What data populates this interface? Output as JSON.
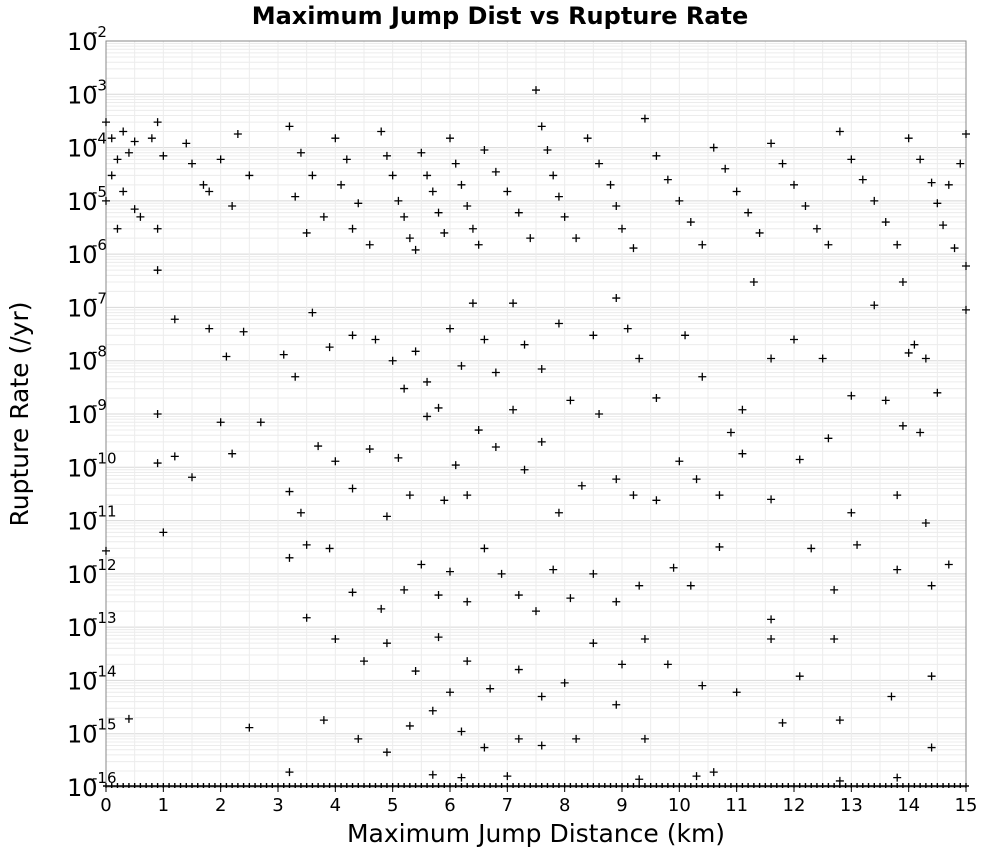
{
  "chart_data": {
    "type": "scatter",
    "title": "Maximum Jump Dist vs Rupture Rate",
    "xlabel": "Maximum Jump Distance (km)",
    "ylabel": "Rupture Rate (/yr)",
    "xlim": [
      0,
      15
    ],
    "ylim": [
      1e-16,
      0.01
    ],
    "y_scale": "log",
    "grid": true,
    "marker": "plus",
    "marker_color": "#000000",
    "x_ticks": [
      "0",
      "1",
      "2",
      "3",
      "4",
      "5",
      "6",
      "7",
      "8",
      "9",
      "10",
      "11",
      "12",
      "13",
      "14",
      "15"
    ],
    "y_ticks": [
      {
        "base": "10",
        "exp": "-16"
      },
      {
        "base": "10",
        "exp": "-15"
      },
      {
        "base": "10",
        "exp": "-14"
      },
      {
        "base": "10",
        "exp": "-13"
      },
      {
        "base": "10",
        "exp": "-12"
      },
      {
        "base": "10",
        "exp": "-11"
      },
      {
        "base": "10",
        "exp": "-10"
      },
      {
        "base": "10",
        "exp": "-9"
      },
      {
        "base": "10",
        "exp": "-8"
      },
      {
        "base": "10",
        "exp": "-7"
      },
      {
        "base": "10",
        "exp": "-6"
      },
      {
        "base": "10",
        "exp": "-5"
      },
      {
        "base": "10",
        "exp": "-4"
      },
      {
        "base": "10",
        "exp": "-3"
      },
      {
        "base": "10",
        "exp": "-2"
      }
    ],
    "points": [
      [
        0.0,
        0.0003
      ],
      [
        0.1,
        0.00015
      ],
      [
        0.3,
        0.0002
      ],
      [
        0.5,
        0.00013
      ],
      [
        0.2,
        6e-05
      ],
      [
        0.4,
        8e-05
      ],
      [
        0.1,
        3e-05
      ],
      [
        0.3,
        1.5e-05
      ],
      [
        0.5,
        7e-06
      ],
      [
        0.0,
        1e-05
      ],
      [
        0.2,
        3e-06
      ],
      [
        0.6,
        5e-06
      ],
      [
        0.9,
        0.0003
      ],
      [
        0.8,
        0.00015
      ],
      [
        1.0,
        7e-05
      ],
      [
        0.9,
        3e-06
      ],
      [
        1.4,
        0.00012
      ],
      [
        1.5,
        5e-05
      ],
      [
        1.8,
        1.5e-05
      ],
      [
        2.0,
        6e-05
      ],
      [
        2.3,
        0.00018
      ],
      [
        2.5,
        3e-05
      ],
      [
        2.2,
        8e-06
      ],
      [
        1.7,
        2e-05
      ],
      [
        3.2,
        0.00025
      ],
      [
        3.4,
        8e-05
      ],
      [
        3.6,
        3e-05
      ],
      [
        3.3,
        1.2e-05
      ],
      [
        3.8,
        5e-06
      ],
      [
        3.5,
        2.5e-06
      ],
      [
        4.0,
        0.00015
      ],
      [
        4.2,
        6e-05
      ],
      [
        4.1,
        2e-05
      ],
      [
        4.4,
        9e-06
      ],
      [
        4.3,
        3e-06
      ],
      [
        4.6,
        1.5e-06
      ],
      [
        4.8,
        0.0002
      ],
      [
        4.9,
        7e-05
      ],
      [
        5.0,
        3e-05
      ],
      [
        5.1,
        1e-05
      ],
      [
        5.2,
        5e-06
      ],
      [
        5.3,
        2e-06
      ],
      [
        5.4,
        1.2e-06
      ],
      [
        5.5,
        8e-05
      ],
      [
        5.6,
        3e-05
      ],
      [
        5.7,
        1.5e-05
      ],
      [
        5.8,
        6e-06
      ],
      [
        5.9,
        2.5e-06
      ],
      [
        6.0,
        0.00015
      ],
      [
        6.1,
        5e-05
      ],
      [
        6.2,
        2e-05
      ],
      [
        6.3,
        8e-06
      ],
      [
        6.4,
        3e-06
      ],
      [
        6.5,
        1.5e-06
      ],
      [
        6.6,
        9e-05
      ],
      [
        6.8,
        3.5e-05
      ],
      [
        7.0,
        1.5e-05
      ],
      [
        7.2,
        6e-06
      ],
      [
        7.4,
        2e-06
      ],
      [
        7.5,
        0.0012
      ],
      [
        7.6,
        0.00025
      ],
      [
        7.7,
        9e-05
      ],
      [
        7.8,
        3e-05
      ],
      [
        7.9,
        1.2e-05
      ],
      [
        8.0,
        5e-06
      ],
      [
        8.2,
        2e-06
      ],
      [
        8.4,
        0.00015
      ],
      [
        8.6,
        5e-05
      ],
      [
        8.8,
        2e-05
      ],
      [
        8.9,
        8e-06
      ],
      [
        9.0,
        3e-06
      ],
      [
        9.2,
        1.3e-06
      ],
      [
        9.4,
        0.00035
      ],
      [
        9.6,
        7e-05
      ],
      [
        9.8,
        2.5e-05
      ],
      [
        10.0,
        1e-05
      ],
      [
        10.2,
        4e-06
      ],
      [
        10.4,
        1.5e-06
      ],
      [
        10.6,
        0.0001
      ],
      [
        10.8,
        4e-05
      ],
      [
        11.0,
        1.5e-05
      ],
      [
        11.2,
        6e-06
      ],
      [
        11.4,
        2.5e-06
      ],
      [
        11.3,
        3e-07
      ],
      [
        11.6,
        0.00012
      ],
      [
        11.8,
        5e-05
      ],
      [
        12.0,
        2e-05
      ],
      [
        12.2,
        8e-06
      ],
      [
        12.4,
        3e-06
      ],
      [
        12.6,
        1.5e-06
      ],
      [
        12.8,
        0.0002
      ],
      [
        13.0,
        6e-05
      ],
      [
        13.2,
        2.5e-05
      ],
      [
        13.4,
        1e-05
      ],
      [
        13.6,
        4e-06
      ],
      [
        13.8,
        1.5e-06
      ],
      [
        14.0,
        0.00015
      ],
      [
        14.2,
        6e-05
      ],
      [
        14.4,
        2.2e-05
      ],
      [
        14.5,
        9e-06
      ],
      [
        14.6,
        3.5e-06
      ],
      [
        14.8,
        1.3e-06
      ],
      [
        15.0,
        0.00018
      ],
      [
        14.9,
        5e-05
      ],
      [
        15.0,
        6e-07
      ],
      [
        15.0,
        9e-08
      ],
      [
        14.7,
        2e-05
      ],
      [
        13.9,
        3e-07
      ],
      [
        0.9,
        5e-07
      ],
      [
        1.2,
        6e-08
      ],
      [
        1.8,
        4e-08
      ],
      [
        2.4,
        3.5e-08
      ],
      [
        2.1,
        1.2e-08
      ],
      [
        3.1,
        1.3e-08
      ],
      [
        3.3,
        5e-09
      ],
      [
        3.6,
        8e-08
      ],
      [
        3.9,
        1.8e-08
      ],
      [
        4.3,
        3e-08
      ],
      [
        4.7,
        2.5e-08
      ],
      [
        5.0,
        1e-08
      ],
      [
        5.2,
        3e-09
      ],
      [
        5.4,
        1.5e-08
      ],
      [
        5.6,
        4e-09
      ],
      [
        5.8,
        1.3e-09
      ],
      [
        6.0,
        4e-08
      ],
      [
        6.2,
        8e-09
      ],
      [
        6.4,
        1.2e-07
      ],
      [
        6.6,
        2.5e-08
      ],
      [
        6.8,
        6e-09
      ],
      [
        7.1,
        1.2e-07
      ],
      [
        7.3,
        2e-08
      ],
      [
        7.6,
        7e-09
      ],
      [
        7.9,
        5e-08
      ],
      [
        8.1,
        1.8e-09
      ],
      [
        8.5,
        3e-08
      ],
      [
        8.9,
        1.5e-07
      ],
      [
        9.1,
        4e-08
      ],
      [
        9.3,
        1.1e-08
      ],
      [
        9.6,
        2e-09
      ],
      [
        10.1,
        3e-08
      ],
      [
        10.4,
        5e-09
      ],
      [
        10.9,
        4.5e-10
      ],
      [
        11.1,
        1.2e-09
      ],
      [
        11.6,
        1.1e-08
      ],
      [
        12.0,
        2.5e-08
      ],
      [
        12.5,
        1.1e-08
      ],
      [
        13.0,
        2.2e-09
      ],
      [
        13.4,
        1.1e-07
      ],
      [
        13.6,
        1.8e-09
      ],
      [
        14.0,
        1.4e-08
      ],
      [
        14.3,
        1.1e-08
      ],
      [
        14.5,
        2.5e-09
      ],
      [
        0.9,
        1e-09
      ],
      [
        0.9,
        1.2e-10
      ],
      [
        1.2,
        1.6e-10
      ],
      [
        1.5,
        6.5e-11
      ],
      [
        2.0,
        7e-10
      ],
      [
        2.2,
        1.8e-10
      ],
      [
        2.7,
        7e-10
      ],
      [
        3.2,
        3.5e-11
      ],
      [
        3.4,
        1.4e-11
      ],
      [
        3.7,
        2.5e-10
      ],
      [
        4.0,
        1.3e-10
      ],
      [
        4.3,
        4e-11
      ],
      [
        4.6,
        2.2e-10
      ],
      [
        4.9,
        1.2e-11
      ],
      [
        5.1,
        1.5e-10
      ],
      [
        5.3,
        3e-11
      ],
      [
        5.6,
        9e-10
      ],
      [
        5.9,
        2.4e-11
      ],
      [
        6.1,
        1.1e-10
      ],
      [
        6.3,
        3e-11
      ],
      [
        6.5,
        5e-10
      ],
      [
        6.8,
        2.4e-10
      ],
      [
        7.1,
        1.2e-09
      ],
      [
        7.3,
        9e-11
      ],
      [
        7.6,
        3e-10
      ],
      [
        7.9,
        1.4e-11
      ],
      [
        8.3,
        4.5e-11
      ],
      [
        8.6,
        1e-09
      ],
      [
        8.9,
        6e-11
      ],
      [
        9.2,
        3e-11
      ],
      [
        9.6,
        2.4e-11
      ],
      [
        10.0,
        1.3e-10
      ],
      [
        10.3,
        6e-11
      ],
      [
        10.7,
        3e-11
      ],
      [
        11.1,
        1.8e-10
      ],
      [
        11.6,
        2.5e-11
      ],
      [
        12.1,
        1.4e-10
      ],
      [
        12.6,
        3.5e-10
      ],
      [
        13.0,
        1.4e-11
      ],
      [
        13.8,
        3e-11
      ],
      [
        13.9,
        6e-10
      ],
      [
        14.2,
        4.5e-10
      ],
      [
        1.0,
        6e-12
      ],
      [
        0.0,
        2.7e-12
      ],
      [
        3.2,
        2e-12
      ],
      [
        3.5,
        3.5e-12
      ],
      [
        3.9,
        3e-12
      ],
      [
        4.3,
        4.5e-13
      ],
      [
        4.8,
        2.2e-13
      ],
      [
        5.2,
        5e-13
      ],
      [
        5.5,
        1.5e-12
      ],
      [
        5.8,
        4e-13
      ],
      [
        6.0,
        1.1e-12
      ],
      [
        6.3,
        3e-13
      ],
      [
        6.6,
        3e-12
      ],
      [
        6.9,
        1e-12
      ],
      [
        7.2,
        4e-13
      ],
      [
        7.5,
        2e-13
      ],
      [
        7.8,
        1.2e-12
      ],
      [
        8.1,
        3.5e-13
      ],
      [
        8.5,
        1e-12
      ],
      [
        8.9,
        3e-13
      ],
      [
        9.3,
        6e-13
      ],
      [
        9.9,
        1.3e-12
      ],
      [
        10.2,
        6e-13
      ],
      [
        10.7,
        3.2e-12
      ],
      [
        11.6,
        1.4e-13
      ],
      [
        12.3,
        3e-12
      ],
      [
        12.7,
        5e-13
      ],
      [
        13.1,
        3.5e-12
      ],
      [
        13.8,
        1.2e-12
      ],
      [
        14.4,
        6e-13
      ],
      [
        14.7,
        1.5e-12
      ],
      [
        3.5,
        1.5e-13
      ],
      [
        4.0,
        6e-14
      ],
      [
        4.5,
        2.3e-14
      ],
      [
        4.9,
        5e-14
      ],
      [
        5.4,
        1.5e-14
      ],
      [
        5.8,
        6.5e-14
      ],
      [
        6.0,
        6e-15
      ],
      [
        6.3,
        2.3e-14
      ],
      [
        6.7,
        7e-15
      ],
      [
        7.2,
        1.6e-14
      ],
      [
        7.6,
        5e-15
      ],
      [
        8.0,
        9e-15
      ],
      [
        8.5,
        5e-14
      ],
      [
        9.0,
        2e-14
      ],
      [
        9.4,
        6e-14
      ],
      [
        9.8,
        2e-14
      ],
      [
        10.4,
        8e-15
      ],
      [
        11.0,
        6e-15
      ],
      [
        11.6,
        6e-14
      ],
      [
        12.1,
        1.2e-14
      ],
      [
        12.7,
        6e-14
      ],
      [
        13.7,
        5e-15
      ],
      [
        14.4,
        1.2e-14
      ],
      [
        0.4,
        1.9e-15
      ],
      [
        2.5,
        1.3e-15
      ],
      [
        3.8,
        1.8e-15
      ],
      [
        4.4,
        8e-16
      ],
      [
        4.9,
        4.5e-16
      ],
      [
        5.3,
        1.4e-15
      ],
      [
        5.7,
        2.7e-15
      ],
      [
        6.2,
        1.1e-15
      ],
      [
        6.6,
        5.5e-16
      ],
      [
        7.2,
        8e-16
      ],
      [
        7.6,
        6e-16
      ],
      [
        8.2,
        8e-16
      ],
      [
        8.9,
        3.5e-15
      ],
      [
        9.4,
        8e-16
      ],
      [
        10.3,
        1.6e-16
      ],
      [
        10.6,
        1.9e-16
      ],
      [
        11.8,
        1.6e-15
      ],
      [
        12.8,
        1.8e-15
      ],
      [
        14.4,
        5.5e-16
      ],
      [
        3.2,
        1.9e-16
      ],
      [
        5.7,
        1.7e-16
      ],
      [
        6.2,
        1.5e-16
      ],
      [
        7.0,
        1.6e-16
      ],
      [
        9.3,
        1.4e-16
      ],
      [
        12.8,
        1.3e-16
      ],
      [
        13.8,
        1.5e-16
      ],
      [
        14.3,
        9e-12
      ],
      [
        14.1,
        2e-08
      ]
    ],
    "floor_markers": [
      0.0,
      0.1,
      0.2,
      0.3,
      0.4,
      0.5,
      0.6,
      0.7,
      0.8,
      0.9,
      1.0,
      1.1,
      1.2,
      1.3,
      1.4,
      1.5,
      1.6,
      1.7,
      1.8,
      1.9,
      2.0,
      2.1,
      2.2,
      2.3,
      2.4,
      2.5,
      2.6,
      2.7,
      2.8,
      2.9,
      3.0,
      3.1,
      3.2,
      3.3,
      3.4,
      3.5,
      3.6,
      3.7,
      3.8,
      3.9,
      4.0,
      4.1,
      4.2,
      4.3,
      4.4,
      4.5,
      4.6,
      4.7,
      4.8,
      4.9,
      5.0,
      5.1,
      5.2,
      5.3,
      5.4,
      5.5,
      5.6,
      5.7,
      5.8,
      5.9,
      6.0,
      6.1,
      6.2,
      6.3,
      6.4,
      6.5,
      6.6,
      6.7,
      6.8,
      6.9,
      7.0,
      7.1,
      7.2,
      7.3,
      7.4,
      7.5,
      7.6,
      7.7,
      7.8,
      7.9,
      8.0,
      8.1,
      8.2,
      8.3,
      8.4,
      8.5,
      8.6,
      8.7,
      8.8,
      8.9,
      9.0,
      9.1,
      9.2,
      9.3,
      9.4,
      9.5,
      9.6,
      9.7,
      9.8,
      9.9,
      10.0,
      10.1,
      10.2,
      10.3,
      10.4,
      10.5,
      10.6,
      10.7,
      10.8,
      10.9,
      11.0,
      11.1,
      11.2,
      11.3,
      11.4,
      11.5,
      11.6,
      11.7,
      11.8,
      11.9,
      12.0,
      12.1,
      12.2,
      12.3,
      12.4,
      12.5,
      12.6,
      12.7,
      12.8,
      12.9,
      13.0,
      13.1,
      13.2,
      13.3,
      13.4,
      13.5,
      13.6,
      13.7,
      13.8,
      13.9,
      14.0,
      14.1,
      14.2,
      14.3,
      14.4,
      14.5,
      14.6,
      14.7,
      14.8,
      14.9,
      15.0
    ]
  }
}
